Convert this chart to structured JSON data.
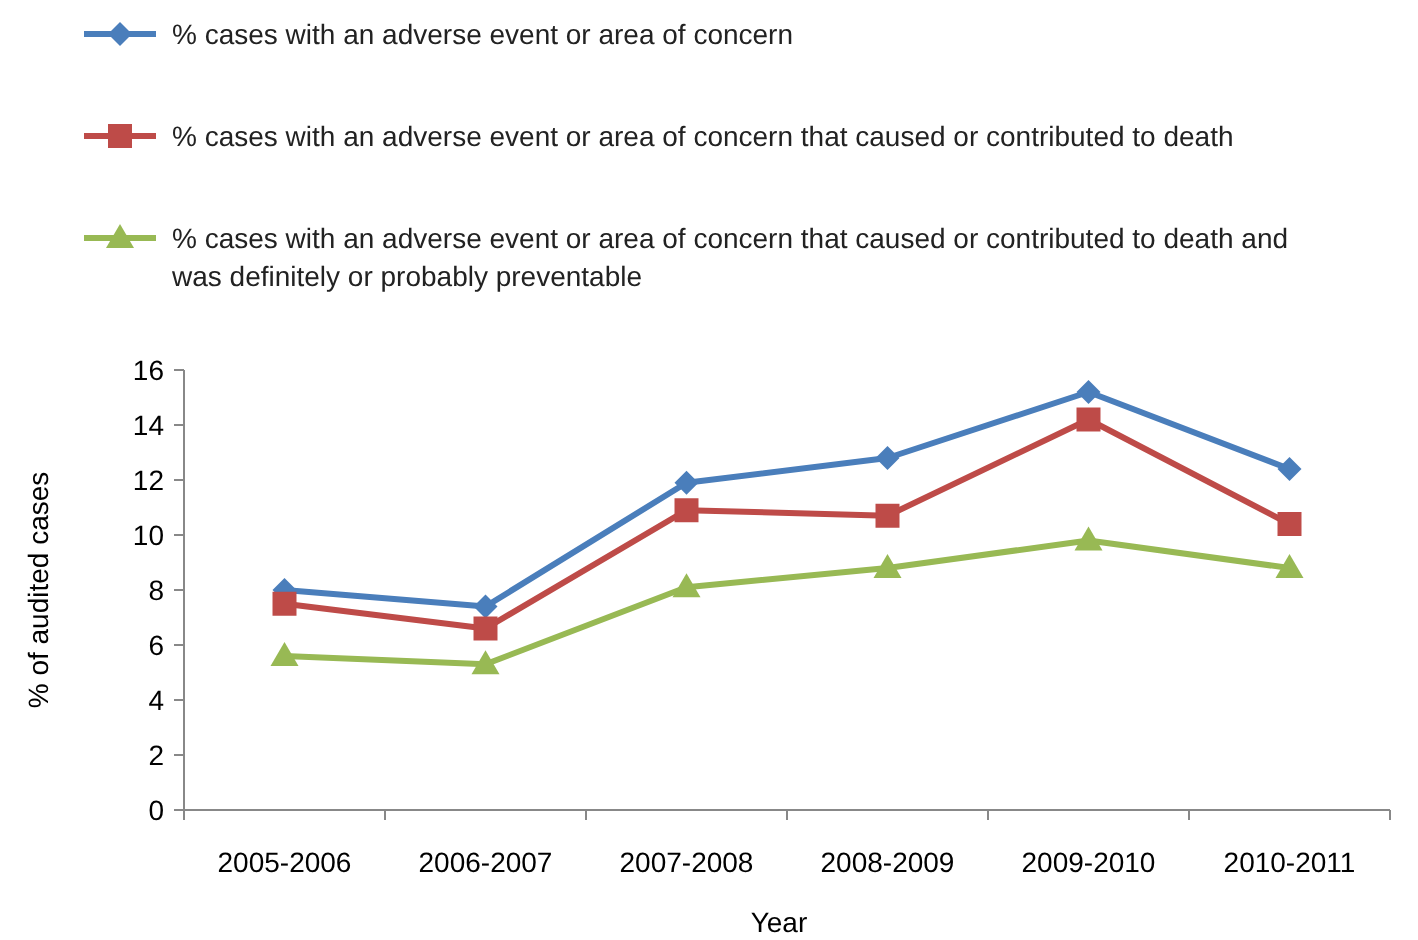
{
  "chart_data": {
    "type": "line",
    "xlabel": "Year",
    "ylabel": "% of audited cases",
    "categories": [
      "2005-2006",
      "2006-2007",
      "2007-2008",
      "2008-2009",
      "2009-2010",
      "2010-2011"
    ],
    "series": [
      {
        "name": "% cases with an adverse event or area of concern",
        "color": "#4a7ebb",
        "marker": "diamond",
        "values": [
          8.0,
          7.4,
          11.9,
          12.8,
          15.2,
          12.4
        ]
      },
      {
        "name": "% cases with an adverse event or area of concern that caused or contributed to death",
        "color": "#be4b48",
        "marker": "square",
        "values": [
          7.5,
          6.6,
          10.9,
          10.7,
          14.2,
          10.4
        ]
      },
      {
        "name": "% cases with an adverse event or area of concern that caused or contributed to death and was definitely or probably preventable",
        "color": "#98b954",
        "marker": "triangle",
        "values": [
          5.6,
          5.3,
          8.1,
          8.8,
          9.8,
          8.8
        ]
      }
    ],
    "ylim": [
      0,
      16
    ],
    "yticks": [
      0,
      2,
      4,
      6,
      8,
      10,
      12,
      14,
      16
    ],
    "grid": false,
    "legend": "top",
    "line_style": "solid"
  }
}
